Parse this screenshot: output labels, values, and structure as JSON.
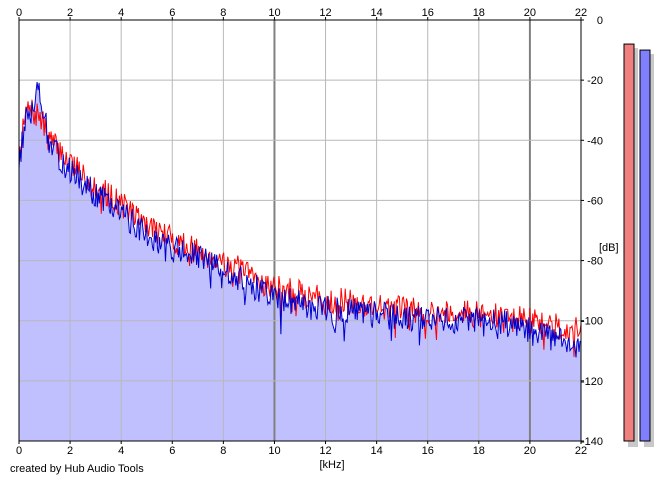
{
  "credit": "created by Hub Audio Tools",
  "colors": {
    "left": "#ff0000",
    "right": "#0000cc",
    "fill": "#c0c0ff",
    "meter_left": "#f08080",
    "meter_right": "#8080ff"
  },
  "chart_data": {
    "type": "line",
    "xlabel": "[kHz]",
    "ylabel": "[dB]",
    "xlim": [
      0,
      22
    ],
    "ylim": [
      -140,
      0
    ],
    "x_ticks": [
      0,
      2,
      4,
      6,
      8,
      10,
      12,
      14,
      16,
      18,
      20,
      22
    ],
    "y_ticks": [
      0,
      -20,
      -40,
      -60,
      -80,
      -100,
      -120,
      -140
    ],
    "x_tick_labels": [
      "0",
      "2",
      "4",
      "6",
      "8",
      "10",
      "12",
      "14",
      "16",
      "18",
      "20",
      "22"
    ],
    "y_tick_labels": [
      "0",
      "-20",
      "-40",
      "-60",
      "-80",
      "-100",
      "-120",
      "-140"
    ],
    "grid": true,
    "series": [
      {
        "color": "#ff0000",
        "x": [
          0,
          0.3,
          0.8,
          1.2,
          2,
          3,
          4,
          5,
          6,
          7,
          8,
          9,
          10,
          11,
          12,
          13,
          14,
          15,
          16,
          17,
          18,
          19,
          20,
          21,
          22
        ],
        "values": [
          -45,
          -30,
          -32,
          -40,
          -47,
          -55,
          -61,
          -68,
          -73,
          -77,
          -80,
          -85,
          -89,
          -91,
          -93,
          -94,
          -95,
          -96,
          -97,
          -97,
          -98,
          -99,
          -100,
          -102,
          -103
        ]
      },
      {
        "color": "#0000cc",
        "x": [
          0,
          0.3,
          0.8,
          1.2,
          2,
          3,
          4,
          5,
          6,
          7,
          8,
          9,
          10,
          11,
          12,
          13,
          14,
          15,
          16,
          17,
          18,
          19,
          20,
          21,
          22
        ],
        "values": [
          -47,
          -32,
          -22,
          -42,
          -50,
          -58,
          -64,
          -71,
          -76,
          -79,
          -83,
          -88,
          -92,
          -94,
          -96,
          -97,
          -98,
          -99,
          -99,
          -100,
          -100,
          -101,
          -103,
          -106,
          -110
        ]
      }
    ],
    "levels": {
      "left": -8,
      "right": -10
    }
  }
}
